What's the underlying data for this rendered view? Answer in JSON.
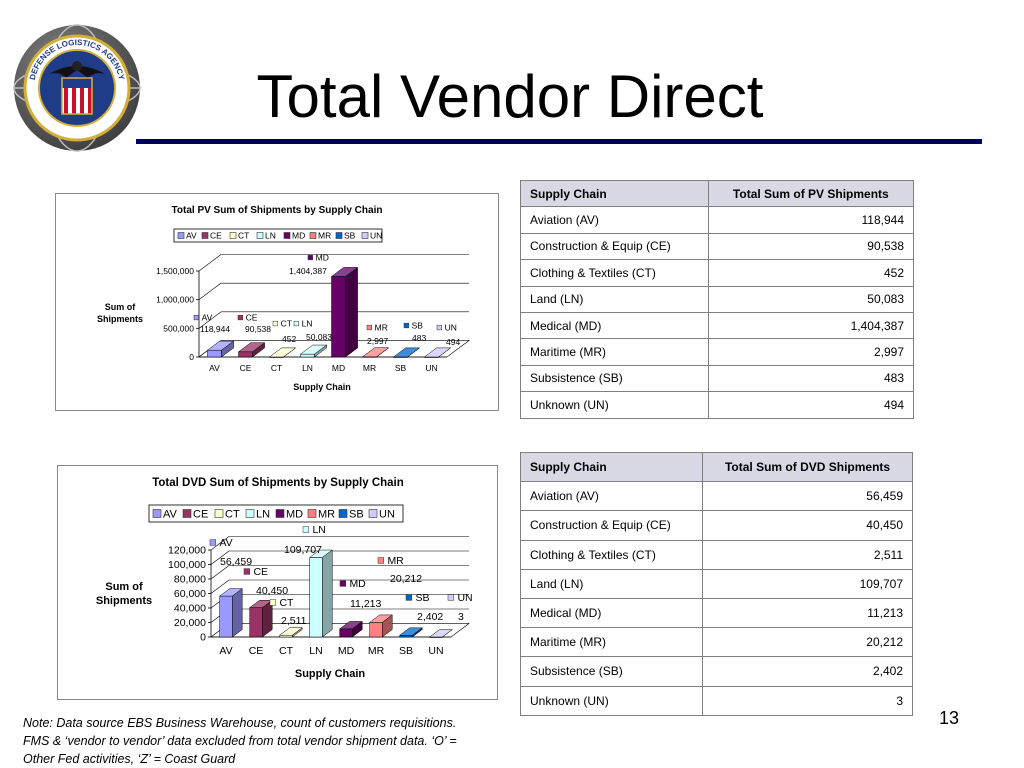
{
  "title": "Total Vendor Direct",
  "page_number": "13",
  "note": "Note: Data source EBS Business Warehouse, count of customers requisitions. FMS & ‘vendor to vendor’ data excluded from total vendor shipment data.  ‘O’ = Other Fed activities, ‘Z’ = Coast Guard",
  "logo": {
    "icon": "dla-seal-icon",
    "text": "DEFENSE LOGISTICS AGENCY"
  },
  "table_pv": {
    "headers": [
      "Supply Chain",
      "Total Sum of PV Shipments"
    ],
    "rows": [
      [
        "Aviation (AV)",
        "118,944"
      ],
      [
        "Construction & Equip (CE)",
        "90,538"
      ],
      [
        "Clothing & Textiles (CT)",
        "452"
      ],
      [
        "Land (LN)",
        "50,083"
      ],
      [
        "Medical (MD)",
        "1,404,387"
      ],
      [
        "Maritime (MR)",
        "2,997"
      ],
      [
        "Subsistence (SB)",
        "483"
      ],
      [
        "Unknown (UN)",
        "494"
      ]
    ]
  },
  "table_dvd": {
    "headers": [
      "Supply Chain",
      "Total Sum of DVD Shipments"
    ],
    "rows": [
      [
        "Aviation (AV)",
        "56,459"
      ],
      [
        "Construction & Equip (CE)",
        "40,450"
      ],
      [
        "Clothing & Textiles (CT)",
        "2,511"
      ],
      [
        "Land (LN)",
        "109,707"
      ],
      [
        "Medical (MD)",
        "11,213"
      ],
      [
        "Maritime (MR)",
        "20,212"
      ],
      [
        "Subsistence (SB)",
        "2,402"
      ],
      [
        "Unknown (UN)",
        "3"
      ]
    ]
  },
  "colors": {
    "AV": "#9999ff",
    "CE": "#993366",
    "CT": "#ffffcc",
    "LN": "#ccffff",
    "MD": "#660066",
    "MR": "#ff8080",
    "SB": "#0066cc",
    "UN": "#ccccff",
    "title_rule": "#000066",
    "table_header": "#d9d9e6"
  },
  "chart_data": [
    {
      "type": "bar",
      "title": "Total PV Sum of Shipments by Supply Chain",
      "xlabel": "Supply Chain",
      "ylabel": "Sum of Shipments",
      "categories": [
        "AV",
        "CE",
        "CT",
        "LN",
        "MD",
        "MR",
        "SB",
        "UN"
      ],
      "values": [
        118944,
        90538,
        452,
        50083,
        1404387,
        2997,
        483,
        494
      ],
      "data_labels": [
        "118,944",
        "90,538",
        "452",
        "50,083",
        "1,404,387",
        "2,997",
        "483",
        "494"
      ],
      "ylim": [
        0,
        1500000
      ],
      "yticks": [
        0,
        500000,
        1000000,
        1500000
      ],
      "ytick_labels": [
        "0",
        "500,000",
        "1,000,000",
        "1,500,000"
      ],
      "legend": [
        "AV",
        "CE",
        "CT",
        "LN",
        "MD",
        "MR",
        "SB",
        "UN"
      ],
      "legend_position": "top",
      "grid": true
    },
    {
      "type": "bar",
      "title": "Total DVD Sum of Shipments by Supply Chain",
      "xlabel": "Supply Chain",
      "ylabel": "Sum of Shipments",
      "categories": [
        "AV",
        "CE",
        "CT",
        "LN",
        "MD",
        "MR",
        "SB",
        "UN"
      ],
      "values": [
        56459,
        40450,
        2511,
        109707,
        11213,
        20212,
        2402,
        3
      ],
      "data_labels": [
        "56,459",
        "40,450",
        "2,511",
        "109,707",
        "11,213",
        "20,212",
        "2,402",
        "3"
      ],
      "ylim": [
        0,
        120000
      ],
      "yticks": [
        0,
        20000,
        40000,
        60000,
        80000,
        100000,
        120000
      ],
      "ytick_labels": [
        "0",
        "20,000",
        "40,000",
        "60,000",
        "80,000",
        "100,000",
        "120,000"
      ],
      "legend": [
        "AV",
        "CE",
        "CT",
        "LN",
        "MD",
        "MR",
        "SB",
        "UN"
      ],
      "legend_position": "top",
      "grid": true
    }
  ]
}
